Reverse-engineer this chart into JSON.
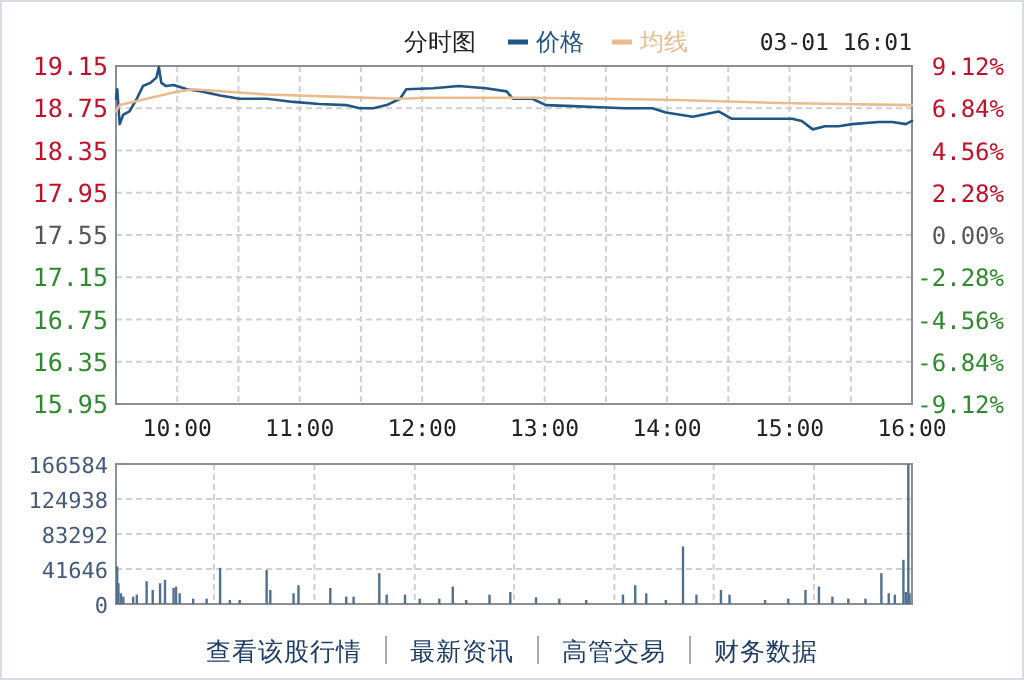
{
  "chart_data": [
    {
      "type": "line",
      "title": "分时图",
      "annotations": [
        "03-01 16:01"
      ],
      "legend": "top",
      "grid": true,
      "xlim": [
        9.5,
        16
      ],
      "xticks": [
        {
          "value": 10,
          "label": "10:00"
        },
        {
          "value": 10.5,
          "label": null
        },
        {
          "value": 11,
          "label": "11:00"
        },
        {
          "value": 11.5,
          "label": null
        },
        {
          "value": 12,
          "label": "12:00"
        },
        {
          "value": 12.5,
          "label": null
        },
        {
          "value": 13,
          "label": "13:00"
        },
        {
          "value": 13.5,
          "label": null
        },
        {
          "value": 14,
          "label": "14:00"
        },
        {
          "value": 14.5,
          "label": null
        },
        {
          "value": 15,
          "label": "15:00"
        },
        {
          "value": 15.5,
          "label": null
        },
        {
          "value": 16,
          "label": "16:00"
        }
      ],
      "ylim": [
        15.95,
        19.15
      ],
      "yticks": [
        15.95,
        16.35,
        16.75,
        17.15,
        17.55,
        17.95,
        18.35,
        18.75,
        19.15
      ],
      "y2lim": [
        -9.12,
        9.12
      ],
      "y2ticks": [
        {
          "value": -9.12,
          "label": "-9.12%"
        },
        {
          "value": -6.84,
          "label": "-6.84%"
        },
        {
          "value": -4.56,
          "label": "-4.56%"
        },
        {
          "value": -2.28,
          "label": "-2.28%"
        },
        {
          "value": 0,
          "label": "0.00%"
        },
        {
          "value": 2.28,
          "label": "2.28%"
        },
        {
          "value": 4.56,
          "label": "4.56%"
        },
        {
          "value": 6.84,
          "label": "6.84%"
        },
        {
          "value": 9.12,
          "label": "9.12%"
        }
      ],
      "series": [
        {
          "name": "价格",
          "color": "#1f5685",
          "x": [
            9.5,
            9.51,
            9.53,
            9.56,
            9.61,
            9.67,
            9.72,
            9.78,
            9.83,
            9.85,
            9.87,
            9.91,
            9.97,
            10.08,
            10.19,
            10.35,
            10.51,
            10.73,
            10.95,
            11.16,
            11.38,
            11.49,
            11.6,
            11.71,
            11.82,
            11.87,
            12.09,
            12.3,
            12.52,
            12.69,
            12.74,
            12.9,
            13.01,
            13.23,
            13.45,
            13.66,
            13.88,
            13.99,
            14.21,
            14.42,
            14.53,
            14.75,
            15.02,
            15.1,
            15.19,
            15.29,
            15.4,
            15.51,
            15.73,
            15.84,
            15.95,
            16.0
          ],
          "values": [
            18.84,
            18.93,
            18.6,
            18.69,
            18.72,
            18.84,
            18.96,
            18.99,
            19.04,
            19.14,
            18.99,
            18.96,
            18.97,
            18.93,
            18.91,
            18.87,
            18.84,
            18.84,
            18.81,
            18.79,
            18.78,
            18.75,
            18.75,
            18.78,
            18.84,
            18.93,
            18.94,
            18.96,
            18.94,
            18.91,
            18.84,
            18.84,
            18.78,
            18.77,
            18.76,
            18.75,
            18.75,
            18.71,
            18.67,
            18.72,
            18.65,
            18.65,
            18.65,
            18.63,
            18.55,
            18.58,
            18.58,
            18.6,
            18.62,
            18.62,
            18.6,
            18.63
          ]
        },
        {
          "name": "均线",
          "color": "#e9bb8e",
          "x": [
            9.5,
            9.53,
            9.75,
            9.97,
            10.13,
            10.73,
            11.27,
            11.82,
            12.03,
            12.9,
            13.99,
            14.91,
            16.0
          ],
          "values": [
            18.72,
            18.78,
            18.84,
            18.9,
            18.93,
            18.88,
            18.86,
            18.84,
            18.85,
            18.85,
            18.83,
            18.8,
            18.78
          ]
        }
      ]
    },
    {
      "type": "bar",
      "grid": true,
      "tick_labels": "y",
      "annotations": [
        "查看该股行情",
        "最新资讯",
        "高管交易",
        "财务数据"
      ],
      "xlim": [
        9.5,
        16
      ],
      "xticks": [
        {
          "value": 10.3,
          "label": null
        },
        {
          "value": 11.12,
          "label": null
        },
        {
          "value": 11.94,
          "label": null
        },
        {
          "value": 12.75,
          "label": null
        },
        {
          "value": 13.57,
          "label": null
        },
        {
          "value": 14.38,
          "label": null
        },
        {
          "value": 15.2,
          "label": null
        }
      ],
      "ylim": [
        0,
        166584
      ],
      "yticks": [
        0,
        41646,
        83292,
        124938,
        166584
      ],
      "series": [
        {
          "color": "#52708f",
          "x": [
            9.51,
            9.52,
            9.54,
            9.56,
            9.64,
            9.67,
            9.75,
            9.8,
            9.86,
            9.9,
            9.97,
            9.99,
            10.02,
            10.13,
            10.24,
            10.35,
            10.43,
            10.51,
            10.73,
            10.76,
            10.95,
            10.99,
            11.25,
            11.38,
            11.44,
            11.65,
            11.71,
            11.86,
            11.98,
            12.14,
            12.25,
            12.36,
            12.55,
            12.72,
            12.93,
            13.12,
            13.34,
            13.64,
            13.74,
            13.83,
            13.99,
            14.13,
            14.24,
            14.44,
            14.51,
            14.8,
            14.99,
            15.13,
            15.24,
            15.35,
            15.48,
            15.62,
            15.75,
            15.81,
            15.86,
            15.93,
            15.95,
            15.97,
            15.98
          ],
          "values": [
            44600,
            24700,
            12750,
            8770,
            8770,
            11160,
            27100,
            16740,
            24700,
            28700,
            19100,
            20700,
            12750,
            6380,
            6380,
            43000,
            4780,
            4780,
            40600,
            16740,
            12750,
            22300,
            19100,
            8770,
            8770,
            36700,
            11160,
            11160,
            6380,
            6380,
            20700,
            4780,
            11160,
            14300,
            7970,
            6380,
            4780,
            11160,
            22300,
            12750,
            4780,
            68500,
            11160,
            16740,
            11160,
            4780,
            6380,
            16740,
            20700,
            8770,
            6380,
            6380,
            36700,
            12750,
            11160,
            52600,
            14350,
            166584,
            12750
          ]
        }
      ]
    }
  ]
}
